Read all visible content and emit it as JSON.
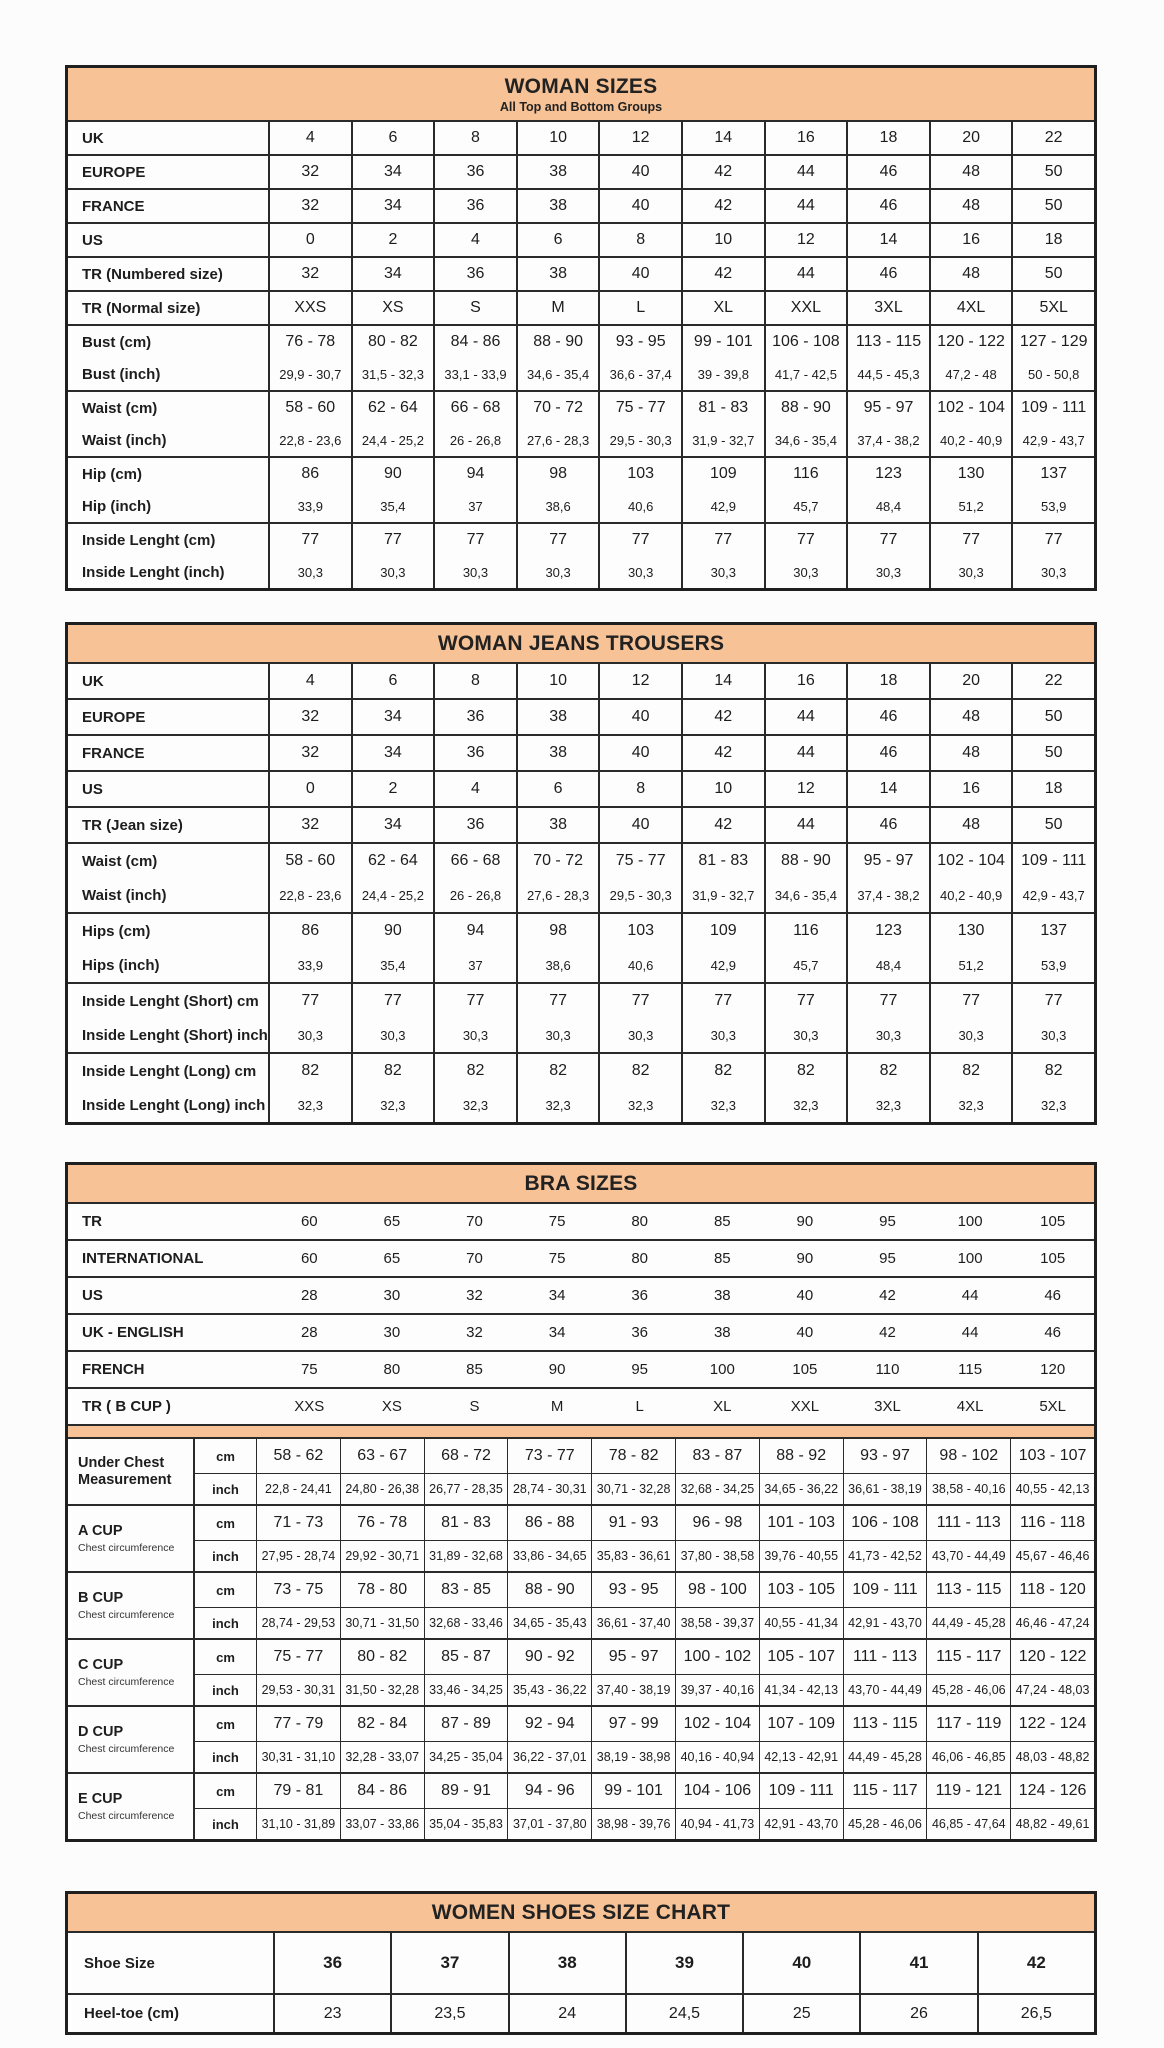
{
  "page": {
    "accent_color": "#f6c296",
    "border_color": "#2a2a2a",
    "background": "#fcfcfc"
  },
  "woman_sizes": {
    "title": "WOMAN SIZES",
    "subtitle": "All Top and Bottom Groups",
    "groups": [
      {
        "rows": [
          {
            "label": "UK",
            "values": [
              "4",
              "6",
              "8",
              "10",
              "12",
              "14",
              "16",
              "18",
              "20",
              "22"
            ]
          }
        ]
      },
      {
        "rows": [
          {
            "label": "EUROPE",
            "values": [
              "32",
              "34",
              "36",
              "38",
              "40",
              "42",
              "44",
              "46",
              "48",
              "50"
            ]
          }
        ]
      },
      {
        "rows": [
          {
            "label": "FRANCE",
            "values": [
              "32",
              "34",
              "36",
              "38",
              "40",
              "42",
              "44",
              "46",
              "48",
              "50"
            ]
          }
        ]
      },
      {
        "rows": [
          {
            "label": "US",
            "values": [
              "0",
              "2",
              "4",
              "6",
              "8",
              "10",
              "12",
              "14",
              "16",
              "18"
            ]
          }
        ]
      },
      {
        "rows": [
          {
            "label": "TR (Numbered size)",
            "values": [
              "32",
              "34",
              "36",
              "38",
              "40",
              "42",
              "44",
              "46",
              "48",
              "50"
            ]
          }
        ]
      },
      {
        "rows": [
          {
            "label": "TR (Normal size)",
            "values": [
              "XXS",
              "XS",
              "S",
              "M",
              "L",
              "XL",
              "XXL",
              "3XL",
              "4XL",
              "5XL"
            ]
          }
        ]
      },
      {
        "rows": [
          {
            "label": "Bust (cm)",
            "values": [
              "76 - 78",
              "80 - 82",
              "84 - 86",
              "88 - 90",
              "93 - 95",
              "99 - 101",
              "106 - 108",
              "113 - 115",
              "120 - 122",
              "127 - 129"
            ]
          },
          {
            "label": "Bust (inch)",
            "small": true,
            "values": [
              "29,9 - 30,7",
              "31,5 - 32,3",
              "33,1 - 33,9",
              "34,6 - 35,4",
              "36,6 - 37,4",
              "39 - 39,8",
              "41,7 - 42,5",
              "44,5 - 45,3",
              "47,2 - 48",
              "50 - 50,8"
            ]
          }
        ]
      },
      {
        "rows": [
          {
            "label": "Waist (cm)",
            "values": [
              "58 - 60",
              "62 - 64",
              "66 - 68",
              "70 - 72",
              "75 - 77",
              "81 - 83",
              "88 - 90",
              "95 - 97",
              "102 - 104",
              "109 - 111"
            ]
          },
          {
            "label": "Waist (inch)",
            "small": true,
            "values": [
              "22,8 - 23,6",
              "24,4 - 25,2",
              "26 - 26,8",
              "27,6 - 28,3",
              "29,5 - 30,3",
              "31,9 - 32,7",
              "34,6 - 35,4",
              "37,4 - 38,2",
              "40,2 - 40,9",
              "42,9 - 43,7"
            ]
          }
        ]
      },
      {
        "rows": [
          {
            "label": "Hip (cm)",
            "values": [
              "86",
              "90",
              "94",
              "98",
              "103",
              "109",
              "116",
              "123",
              "130",
              "137"
            ]
          },
          {
            "label": "Hip (inch)",
            "small": true,
            "values": [
              "33,9",
              "35,4",
              "37",
              "38,6",
              "40,6",
              "42,9",
              "45,7",
              "48,4",
              "51,2",
              "53,9"
            ]
          }
        ]
      },
      {
        "rows": [
          {
            "label": "Inside Lenght (cm)",
            "values": [
              "77",
              "77",
              "77",
              "77",
              "77",
              "77",
              "77",
              "77",
              "77",
              "77"
            ]
          },
          {
            "label": "Inside Lenght (inch)",
            "small": true,
            "values": [
              "30,3",
              "30,3",
              "30,3",
              "30,3",
              "30,3",
              "30,3",
              "30,3",
              "30,3",
              "30,3",
              "30,3"
            ]
          }
        ]
      }
    ]
  },
  "woman_jeans": {
    "title": "WOMAN JEANS TROUSERS",
    "groups": [
      {
        "rows": [
          {
            "label": "UK",
            "values": [
              "4",
              "6",
              "8",
              "10",
              "12",
              "14",
              "16",
              "18",
              "20",
              "22"
            ]
          }
        ]
      },
      {
        "rows": [
          {
            "label": "EUROPE",
            "values": [
              "32",
              "34",
              "36",
              "38",
              "40",
              "42",
              "44",
              "46",
              "48",
              "50"
            ]
          }
        ]
      },
      {
        "rows": [
          {
            "label": "FRANCE",
            "values": [
              "32",
              "34",
              "36",
              "38",
              "40",
              "42",
              "44",
              "46",
              "48",
              "50"
            ]
          }
        ]
      },
      {
        "rows": [
          {
            "label": "US",
            "values": [
              "0",
              "2",
              "4",
              "6",
              "8",
              "10",
              "12",
              "14",
              "16",
              "18"
            ]
          }
        ]
      },
      {
        "rows": [
          {
            "label": "TR (Jean size)",
            "values": [
              "32",
              "34",
              "36",
              "38",
              "40",
              "42",
              "44",
              "46",
              "48",
              "50"
            ]
          }
        ]
      },
      {
        "rows": [
          {
            "label": "Waist (cm)",
            "values": [
              "58 - 60",
              "62 - 64",
              "66 - 68",
              "70 - 72",
              "75 - 77",
              "81 - 83",
              "88 - 90",
              "95 - 97",
              "102 - 104",
              "109 - 111"
            ]
          },
          {
            "label": "Waist (inch)",
            "small": true,
            "values": [
              "22,8 - 23,6",
              "24,4 - 25,2",
              "26 - 26,8",
              "27,6 - 28,3",
              "29,5 - 30,3",
              "31,9 - 32,7",
              "34,6 - 35,4",
              "37,4 - 38,2",
              "40,2 - 40,9",
              "42,9 - 43,7"
            ]
          }
        ]
      },
      {
        "rows": [
          {
            "label": "Hips (cm)",
            "values": [
              "86",
              "90",
              "94",
              "98",
              "103",
              "109",
              "116",
              "123",
              "130",
              "137"
            ]
          },
          {
            "label": "Hips (inch)",
            "small": true,
            "values": [
              "33,9",
              "35,4",
              "37",
              "38,6",
              "40,6",
              "42,9",
              "45,7",
              "48,4",
              "51,2",
              "53,9"
            ]
          }
        ]
      },
      {
        "rows": [
          {
            "label": "Inside Lenght (Short) cm",
            "values": [
              "77",
              "77",
              "77",
              "77",
              "77",
              "77",
              "77",
              "77",
              "77",
              "77"
            ]
          },
          {
            "label": "Inside Lenght (Short) inch",
            "small": true,
            "values": [
              "30,3",
              "30,3",
              "30,3",
              "30,3",
              "30,3",
              "30,3",
              "30,3",
              "30,3",
              "30,3",
              "30,3"
            ]
          }
        ]
      },
      {
        "rows": [
          {
            "label": "Inside Lenght (Long) cm",
            "values": [
              "82",
              "82",
              "82",
              "82",
              "82",
              "82",
              "82",
              "82",
              "82",
              "82"
            ]
          },
          {
            "label": "Inside Lenght (Long) inch",
            "small": true,
            "values": [
              "32,3",
              "32,3",
              "32,3",
              "32,3",
              "32,3",
              "32,3",
              "32,3",
              "32,3",
              "32,3",
              "32,3"
            ]
          }
        ]
      }
    ]
  },
  "bra": {
    "title": "BRA SIZES",
    "top_groups": [
      {
        "rows": [
          {
            "label": "TR",
            "values": [
              "60",
              "65",
              "70",
              "75",
              "80",
              "85",
              "90",
              "95",
              "100",
              "105"
            ]
          }
        ]
      },
      {
        "rows": [
          {
            "label": "INTERNATIONAL",
            "values": [
              "60",
              "65",
              "70",
              "75",
              "80",
              "85",
              "90",
              "95",
              "100",
              "105"
            ]
          }
        ]
      },
      {
        "rows": [
          {
            "label": "US",
            "values": [
              "28",
              "30",
              "32",
              "34",
              "36",
              "38",
              "40",
              "42",
              "44",
              "46"
            ]
          }
        ]
      },
      {
        "rows": [
          {
            "label": "UK - ENGLISH",
            "values": [
              "28",
              "30",
              "32",
              "34",
              "36",
              "38",
              "40",
              "42",
              "44",
              "46"
            ]
          }
        ]
      },
      {
        "rows": [
          {
            "label": "FRENCH",
            "values": [
              "75",
              "80",
              "85",
              "90",
              "95",
              "100",
              "105",
              "110",
              "115",
              "120"
            ]
          }
        ]
      },
      {
        "rows": [
          {
            "label": "TR ( B CUP )",
            "values": [
              "XXS",
              "XS",
              "S",
              "M",
              "L",
              "XL",
              "XXL",
              "3XL",
              "4XL",
              "5XL"
            ]
          }
        ]
      }
    ],
    "cup_groups": [
      {
        "label": "Under Chest Measurement",
        "sublabel": "",
        "unit_rows": [
          {
            "unit": "cm",
            "values": [
              "58 - 62",
              "63 - 67",
              "68 - 72",
              "73 - 77",
              "78 - 82",
              "83 - 87",
              "88 - 92",
              "93 - 97",
              "98 - 102",
              "103 - 107"
            ]
          },
          {
            "unit": "inch",
            "values": [
              "22,8 - 24,41",
              "24,80 - 26,38",
              "26,77 - 28,35",
              "28,74 - 30,31",
              "30,71 - 32,28",
              "32,68 - 34,25",
              "34,65 - 36,22",
              "36,61 - 38,19",
              "38,58 - 40,16",
              "40,55 - 42,13"
            ]
          }
        ]
      },
      {
        "label": "A CUP",
        "sublabel": "Chest circumference",
        "unit_rows": [
          {
            "unit": "cm",
            "values": [
              "71 - 73",
              "76 - 78",
              "81 - 83",
              "86 - 88",
              "91 - 93",
              "96 - 98",
              "101 - 103",
              "106 - 108",
              "111 - 113",
              "116 - 118"
            ]
          },
          {
            "unit": "inch",
            "values": [
              "27,95 - 28,74",
              "29,92 - 30,71",
              "31,89 - 32,68",
              "33,86 - 34,65",
              "35,83 - 36,61",
              "37,80 - 38,58",
              "39,76 - 40,55",
              "41,73 - 42,52",
              "43,70 - 44,49",
              "45,67 - 46,46"
            ]
          }
        ]
      },
      {
        "label": "B CUP",
        "sublabel": "Chest circumference",
        "unit_rows": [
          {
            "unit": "cm",
            "values": [
              "73 - 75",
              "78 - 80",
              "83 - 85",
              "88 - 90",
              "93 - 95",
              "98 - 100",
              "103 - 105",
              "109 - 111",
              "113 - 115",
              "118 - 120"
            ]
          },
          {
            "unit": "inch",
            "values": [
              "28,74 - 29,53",
              "30,71 - 31,50",
              "32,68 - 33,46",
              "34,65 - 35,43",
              "36,61 - 37,40",
              "38,58 - 39,37",
              "40,55 - 41,34",
              "42,91 - 43,70",
              "44,49 - 45,28",
              "46,46 - 47,24"
            ]
          }
        ]
      },
      {
        "label": "C CUP",
        "sublabel": "Chest circumference",
        "unit_rows": [
          {
            "unit": "cm",
            "values": [
              "75 - 77",
              "80 - 82",
              "85 - 87",
              "90 - 92",
              "95 - 97",
              "100 - 102",
              "105 - 107",
              "111 - 113",
              "115 - 117",
              "120 - 122"
            ]
          },
          {
            "unit": "inch",
            "values": [
              "29,53 - 30,31",
              "31,50 - 32,28",
              "33,46 - 34,25",
              "35,43 - 36,22",
              "37,40 - 38,19",
              "39,37 - 40,16",
              "41,34 - 42,13",
              "43,70 - 44,49",
              "45,28 - 46,06",
              "47,24 - 48,03"
            ]
          }
        ]
      },
      {
        "label": "D CUP",
        "sublabel": "Chest circumference",
        "unit_rows": [
          {
            "unit": "cm",
            "values": [
              "77 - 79",
              "82 - 84",
              "87 - 89",
              "92 - 94",
              "97 - 99",
              "102 - 104",
              "107 - 109",
              "113 - 115",
              "117 - 119",
              "122 - 124"
            ]
          },
          {
            "unit": "inch",
            "values": [
              "30,31 - 31,10",
              "32,28 - 33,07",
              "34,25 - 35,04",
              "36,22 - 37,01",
              "38,19 - 38,98",
              "40,16 - 40,94",
              "42,13 - 42,91",
              "44,49 - 45,28",
              "46,06 - 46,85",
              "48,03 - 48,82"
            ]
          }
        ]
      },
      {
        "label": "E CUP",
        "sublabel": "Chest circumference",
        "unit_rows": [
          {
            "unit": "cm",
            "values": [
              "79 - 81",
              "84 - 86",
              "89 - 91",
              "94 - 96",
              "99 - 101",
              "104 - 106",
              "109 - 111",
              "115 - 117",
              "119 - 121",
              "124 - 126"
            ]
          },
          {
            "unit": "inch",
            "values": [
              "31,10 - 31,89",
              "33,07 - 33,86",
              "35,04 - 35,83",
              "37,01 - 37,80",
              "38,98 - 39,76",
              "40,94 - 41,73",
              "42,91 - 43,70",
              "45,28 - 46,06",
              "46,85 - 47,64",
              "48,82 - 49,61"
            ]
          }
        ]
      }
    ]
  },
  "shoes": {
    "title": "WOMEN SHOES SIZE CHART",
    "groups": [
      {
        "cls": "row-tall",
        "rows": [
          {
            "label": "Shoe Size",
            "bold": true,
            "values": [
              "36",
              "37",
              "38",
              "39",
              "40",
              "41",
              "42"
            ]
          }
        ]
      },
      {
        "cls": "row-mid",
        "rows": [
          {
            "label": "Heel-toe (cm)",
            "values": [
              "23",
              "23,5",
              "24",
              "24,5",
              "25",
              "26",
              "26,5"
            ]
          }
        ]
      }
    ]
  }
}
